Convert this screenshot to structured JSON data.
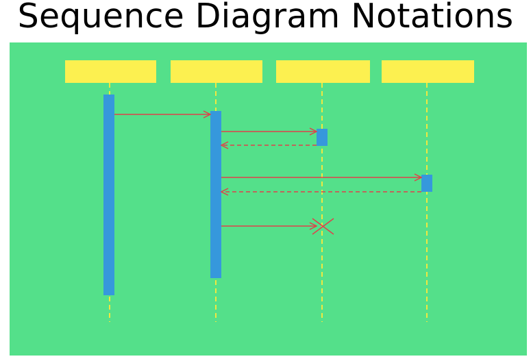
{
  "title": "Sequence Diagram Notations",
  "colors": {
    "background": "#54e08a",
    "participant_box": "#fcf050",
    "lifeline": "#f0e840",
    "activation": "#3698dc",
    "message": "#e0404a"
  },
  "participants": [
    {
      "id": "p1",
      "label": ""
    },
    {
      "id": "p2",
      "label": ""
    },
    {
      "id": "p3",
      "label": ""
    },
    {
      "id": "p4",
      "label": ""
    }
  ],
  "messages": [
    {
      "from": "p1",
      "to": "p2",
      "kind": "synchronous"
    },
    {
      "from": "p2",
      "to": "p3",
      "kind": "synchronous"
    },
    {
      "from": "p3",
      "to": "p2",
      "kind": "return"
    },
    {
      "from": "p2",
      "to": "p4",
      "kind": "synchronous"
    },
    {
      "from": "p4",
      "to": "p2",
      "kind": "return"
    },
    {
      "from": "p2",
      "to": "p3",
      "kind": "destroy"
    }
  ],
  "icons": {
    "destroy": "x-destroy-icon"
  }
}
